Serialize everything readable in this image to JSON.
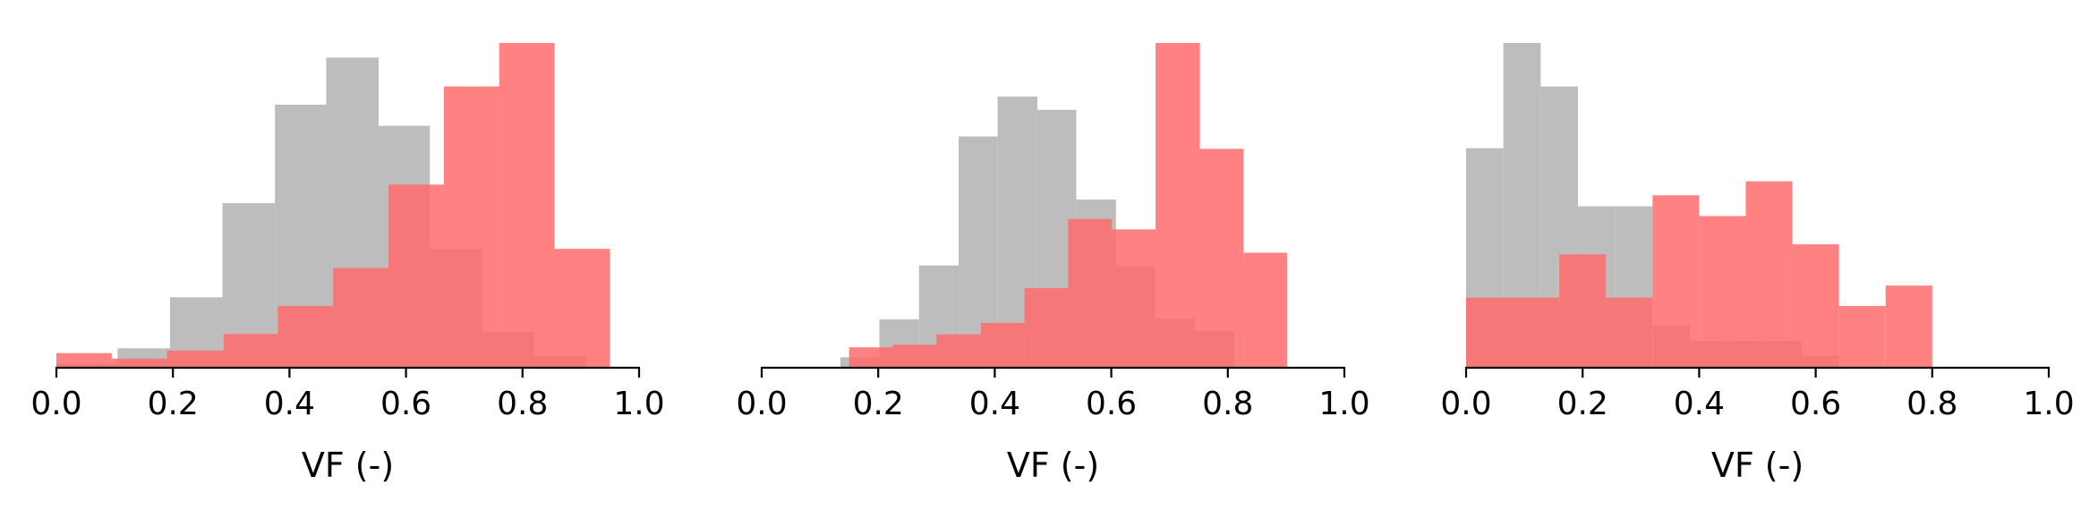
{
  "chart_data": [
    {
      "type": "bar",
      "xlabel": "VF (-)",
      "xlim": [
        0.0,
        1.0
      ],
      "xticks": [
        "0.0",
        "0.2",
        "0.4",
        "0.6",
        "0.8",
        "1.0"
      ],
      "grid": false,
      "legend": "none",
      "series": [
        {
          "color": "#bdbdbd",
          "edges": [
            0.0,
            0.105,
            0.195,
            0.285,
            0.375,
            0.463,
            0.553,
            0.641,
            0.73,
            0.82,
            0.91
          ],
          "values": [
            0.012,
            0.06,
            0.217,
            0.507,
            0.81,
            0.955,
            0.745,
            0.366,
            0.111,
            0.038
          ]
        },
        {
          "color": "#ff6b6b",
          "edges": [
            0.0,
            0.095,
            0.19,
            0.287,
            0.38,
            0.475,
            0.57,
            0.665,
            0.76,
            0.855,
            0.95
          ],
          "values": [
            0.045,
            0.028,
            0.053,
            0.104,
            0.19,
            0.307,
            0.564,
            0.866,
            1.0,
            0.366
          ]
        }
      ]
    },
    {
      "type": "bar",
      "xlabel": "VF (-)",
      "xlim": [
        0.0,
        1.0
      ],
      "xticks": [
        "0.0",
        "0.2",
        "0.4",
        "0.6",
        "0.8",
        "1.0"
      ],
      "grid": false,
      "legend": "none",
      "series": [
        {
          "color": "#bdbdbd",
          "edges": [
            0.135,
            0.202,
            0.27,
            0.338,
            0.405,
            0.473,
            0.54,
            0.608,
            0.676,
            0.743,
            0.811
          ],
          "values": [
            0.032,
            0.149,
            0.315,
            0.712,
            0.835,
            0.794,
            0.518,
            0.313,
            0.151,
            0.113
          ]
        },
        {
          "color": "#ff6b6b",
          "edges": [
            0.15,
            0.225,
            0.3,
            0.376,
            0.451,
            0.526,
            0.601,
            0.676,
            0.752,
            0.827,
            0.902
          ],
          "values": [
            0.063,
            0.071,
            0.103,
            0.138,
            0.245,
            0.458,
            0.426,
            1.0,
            0.674,
            0.354
          ]
        }
      ]
    },
    {
      "type": "bar",
      "xlabel": "VF (-)",
      "xlim": [
        0.0,
        1.0
      ],
      "xticks": [
        "0.0",
        "0.2",
        "0.4",
        "0.6",
        "0.8",
        "1.0"
      ],
      "grid": false,
      "legend": "none",
      "series": [
        {
          "color": "#bdbdbd",
          "edges": [
            0.0,
            0.064,
            0.128,
            0.192,
            0.256,
            0.32,
            0.384,
            0.448,
            0.512,
            0.576,
            0.64
          ],
          "values": [
            0.676,
            1.0,
            0.866,
            0.497,
            0.497,
            0.13,
            0.083,
            0.083,
            0.083,
            0.038
          ]
        },
        {
          "color": "#ff6b6b",
          "edges": [
            0.0,
            0.08,
            0.16,
            0.24,
            0.32,
            0.4,
            0.48,
            0.56,
            0.64,
            0.72,
            0.8
          ],
          "values": [
            0.216,
            0.216,
            0.349,
            0.216,
            0.531,
            0.467,
            0.574,
            0.38,
            0.19,
            0.253
          ]
        }
      ]
    }
  ]
}
